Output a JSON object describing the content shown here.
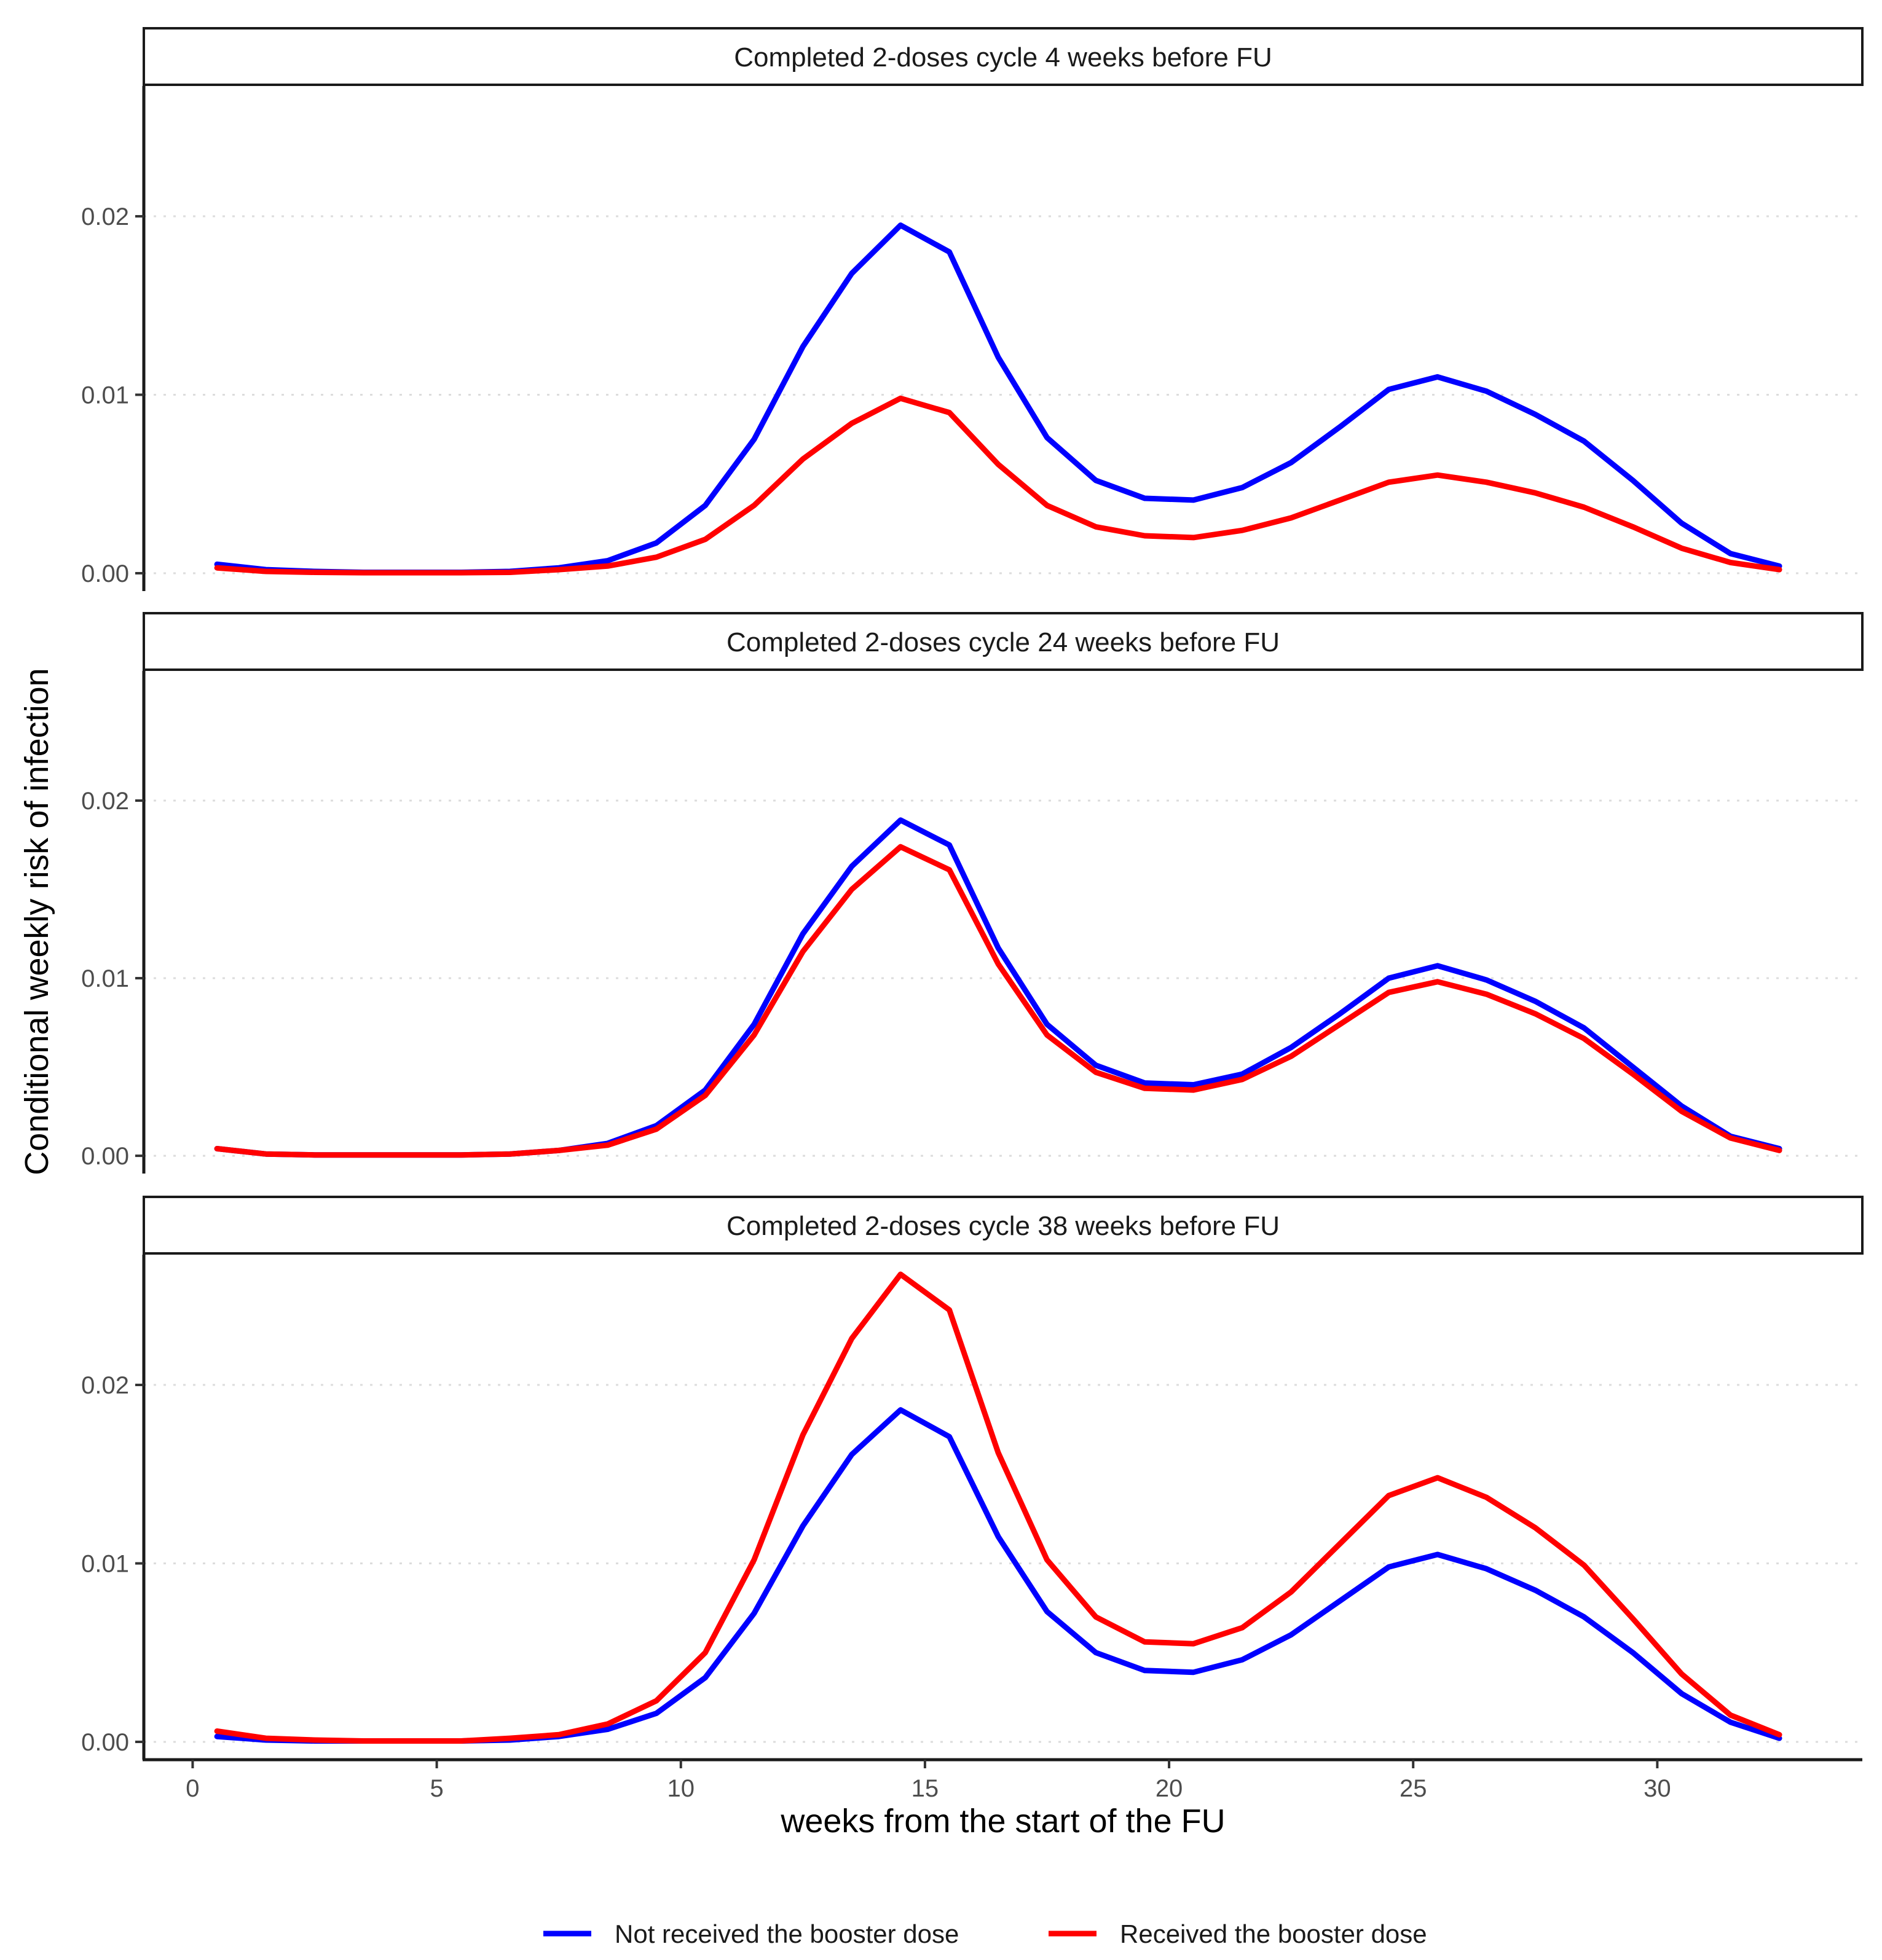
{
  "chart_data": {
    "type": "line",
    "ylabel": "Conditional weekly risk of infection",
    "xlabel": "weeks from the start of the FU",
    "xlim": [
      -1,
      34.2
    ],
    "ylim": [
      -0.001,
      0.0273
    ],
    "x_ticks": [
      0,
      5,
      10,
      15,
      20,
      25,
      30
    ],
    "x_tick_labels": [
      "0",
      "5",
      "10",
      "15",
      "20",
      "25",
      "30"
    ],
    "y_ticks": [
      0,
      0.01,
      0.02
    ],
    "y_tick_labels": [
      "0.00",
      "0.01",
      "0.02"
    ],
    "grid": "horizontal dotted",
    "legend_position": "bottom",
    "series_meta": [
      {
        "name": "Not received the booster dose",
        "color": "#0000ff"
      },
      {
        "name": "Received the booster dose",
        "color": "#ff0000"
      }
    ],
    "x": [
      0.5,
      1.5,
      2.5,
      3.5,
      4.5,
      5.5,
      6.5,
      7.5,
      8.5,
      9.5,
      10.5,
      11.5,
      12.5,
      13.5,
      14.5,
      15.5,
      16.5,
      17.5,
      18.5,
      19.5,
      20.5,
      21.5,
      22.5,
      23.5,
      24.5,
      25.5,
      26.5,
      27.5,
      28.5,
      29.5,
      30.5,
      31.5,
      32.5
    ],
    "panels": [
      {
        "title": "Completed 2-doses cycle 4 weeks before FU",
        "series": [
          {
            "name": "Not received the booster dose",
            "values": [
              0.0005,
              0.0002,
              0.0001,
              5e-05,
              5e-05,
              5e-05,
              0.0001,
              0.0003,
              0.0007,
              0.0017,
              0.0038,
              0.0075,
              0.0127,
              0.0168,
              0.0195,
              0.018,
              0.0121,
              0.0076,
              0.0052,
              0.0042,
              0.0041,
              0.0048,
              0.0062,
              0.0082,
              0.0103,
              0.011,
              0.0102,
              0.0089,
              0.0074,
              0.0052,
              0.0028,
              0.0011,
              0.0004
            ]
          },
          {
            "name": "Received the booster dose",
            "values": [
              0.0003,
              0.0001,
              5e-05,
              3e-05,
              3e-05,
              3e-05,
              5e-05,
              0.0002,
              0.0004,
              0.0009,
              0.0019,
              0.0038,
              0.0064,
              0.0084,
              0.0098,
              0.009,
              0.0061,
              0.0038,
              0.0026,
              0.0021,
              0.002,
              0.0024,
              0.0031,
              0.0041,
              0.0051,
              0.0055,
              0.0051,
              0.0045,
              0.0037,
              0.0026,
              0.0014,
              0.0006,
              0.0002
            ]
          }
        ]
      },
      {
        "title": "Completed 2-doses cycle 24 weeks before FU",
        "series": [
          {
            "name": "Not received the booster dose",
            "values": [
              0.0004,
              0.0001,
              5e-05,
              5e-05,
              5e-05,
              5e-05,
              0.0001,
              0.0003,
              0.0007,
              0.0017,
              0.0037,
              0.0074,
              0.0125,
              0.0163,
              0.0189,
              0.0175,
              0.0117,
              0.0074,
              0.0051,
              0.0041,
              0.004,
              0.0046,
              0.0061,
              0.008,
              0.01,
              0.0107,
              0.0099,
              0.0087,
              0.0072,
              0.005,
              0.0028,
              0.0011,
              0.0004
            ]
          },
          {
            "name": "Received the booster dose",
            "values": [
              0.0004,
              0.0001,
              5e-05,
              5e-05,
              5e-05,
              5e-05,
              0.0001,
              0.0003,
              0.0006,
              0.0015,
              0.0034,
              0.0068,
              0.0115,
              0.015,
              0.0174,
              0.0161,
              0.0108,
              0.0068,
              0.0047,
              0.0038,
              0.0037,
              0.0043,
              0.0056,
              0.0074,
              0.0092,
              0.0098,
              0.0091,
              0.008,
              0.0066,
              0.0046,
              0.0025,
              0.001,
              0.0003
            ]
          }
        ]
      },
      {
        "title": "Completed 2-doses cycle 38 weeks before FU",
        "series": [
          {
            "name": "Not received the booster dose",
            "values": [
              0.0003,
              0.0001,
              5e-05,
              5e-05,
              5e-05,
              5e-05,
              0.0001,
              0.0003,
              0.0007,
              0.0016,
              0.0036,
              0.0072,
              0.0121,
              0.0161,
              0.0186,
              0.0171,
              0.0115,
              0.0073,
              0.005,
              0.004,
              0.0039,
              0.0046,
              0.006,
              0.0079,
              0.0098,
              0.0105,
              0.0097,
              0.0085,
              0.007,
              0.005,
              0.0027,
              0.0011,
              0.0002
            ]
          },
          {
            "name": "Received the booster dose",
            "values": [
              0.0006,
              0.0002,
              0.0001,
              5e-05,
              5e-05,
              5e-05,
              0.0002,
              0.0004,
              0.001,
              0.0023,
              0.005,
              0.0102,
              0.0172,
              0.0226,
              0.0262,
              0.0242,
              0.0162,
              0.0102,
              0.007,
              0.0056,
              0.0055,
              0.0064,
              0.0084,
              0.0111,
              0.0138,
              0.0148,
              0.0137,
              0.012,
              0.0099,
              0.0069,
              0.0038,
              0.0015,
              0.0004
            ]
          }
        ]
      }
    ]
  }
}
